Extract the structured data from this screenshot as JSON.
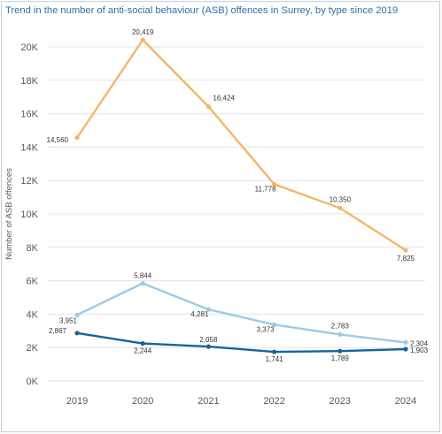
{
  "chart_data": {
    "type": "line",
    "title": "Trend in the number of anti-social behaviour (ASB) offences in Surrey, by type since 2019",
    "xlabel": "",
    "ylabel": "Number of ASB offences",
    "categories": [
      "2019",
      "2020",
      "2021",
      "2022",
      "2023",
      "2024"
    ],
    "y_ticks": [
      "0K",
      "2K",
      "4K",
      "6K",
      "8K",
      "10K",
      "12K",
      "14K",
      "16K",
      "18K",
      "20K"
    ],
    "ylim": [
      0,
      21000
    ],
    "grid": true,
    "series": [
      {
        "color": "#f7b46a",
        "values": [
          14560,
          20419,
          16424,
          11778,
          10350,
          7825
        ],
        "labels": [
          "14,560",
          "20,419",
          "16,424",
          "11,778",
          "10,350",
          "7,825"
        ]
      },
      {
        "color": "#9ccbe8",
        "values": [
          3951,
          5844,
          4281,
          3373,
          2783,
          2304
        ],
        "labels": [
          "3,951",
          "5,844",
          "4,281",
          "3,373",
          "2,783",
          "2,304"
        ]
      },
      {
        "color": "#17639d",
        "values": [
          2867,
          2244,
          2058,
          1741,
          1789,
          1903
        ],
        "labels": [
          "2,867",
          "2,244",
          "2,058",
          "1,741",
          "1,789",
          "1,903"
        ]
      }
    ]
  }
}
